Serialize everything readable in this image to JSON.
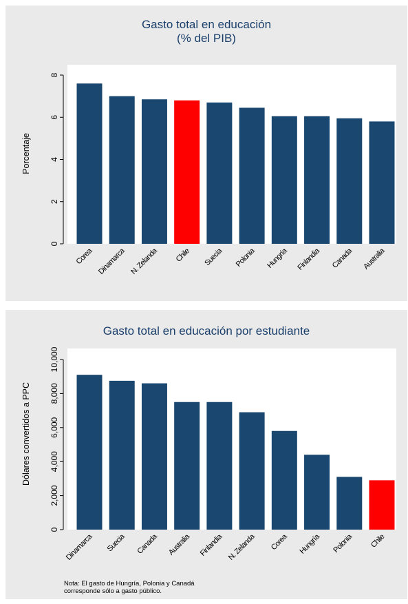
{
  "colors": {
    "bar": "#1a476f",
    "highlight": "#ff0000",
    "panel_bg": "#eaeaea",
    "plot_bg": "#ffffff",
    "title": "#1a3f6b"
  },
  "highlight_category": "Chile",
  "chart_data": [
    {
      "type": "bar",
      "title": "Gasto total en educación",
      "subtitle": "(% del PIB)",
      "xlabel": "",
      "ylabel": "Porcentaje",
      "ylim": [
        0,
        8
      ],
      "yticks": [
        0,
        2,
        4,
        6,
        8
      ],
      "ytick_labels": [
        "0",
        "2",
        "4",
        "6",
        "8"
      ],
      "grid": false,
      "categories": [
        "Corea",
        "Dinamarca",
        "N. Zelanda",
        "Chile",
        "Suecia",
        "Polonia",
        "Hungría",
        "Finlandia",
        "Canada",
        "Australia"
      ],
      "values": [
        7.6,
        7.0,
        6.85,
        6.8,
        6.7,
        6.45,
        6.05,
        6.05,
        5.95,
        5.8
      ]
    },
    {
      "type": "bar",
      "title": "Gasto total en educación por estudiante",
      "xlabel": "",
      "ylabel": "Dólares convertidos a PPC",
      "ylim": [
        0,
        10000
      ],
      "yticks": [
        0,
        2000,
        4000,
        6000,
        8000,
        10000
      ],
      "ytick_labels": [
        "0",
        "2,000",
        "4,000",
        "6,000",
        "8,000",
        "10,000"
      ],
      "grid": false,
      "categories": [
        "Dinamarca",
        "Suecia",
        "Canada",
        "Australia",
        "Finlandia",
        "N. Zelanda",
        "Corea",
        "Hungría",
        "Polonia",
        "Chile"
      ],
      "values": [
        9100,
        8750,
        8600,
        7500,
        7500,
        6900,
        5800,
        4400,
        3100,
        2900
      ]
    }
  ],
  "note": {
    "line1": "Nota: El gasto de Hungría, Polonia y Canadá",
    "line2": "corresponde sólo a gasto público."
  }
}
